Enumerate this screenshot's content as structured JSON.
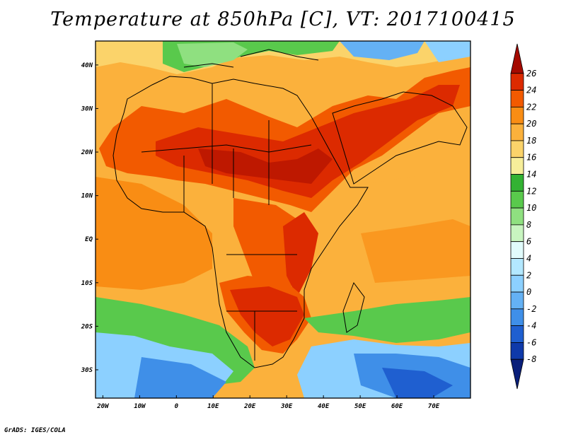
{
  "title": "Temperature at 850hPa [C], VT: 2017100415",
  "credit": "GrADS: IGES/COLA",
  "axes": {
    "lat_labels": [
      "40N",
      "30N",
      "20N",
      "10N",
      "EQ",
      "10S",
      "20S",
      "30S"
    ],
    "lat_values": [
      40,
      30,
      20,
      10,
      0,
      -10,
      -20,
      -30
    ],
    "lon_labels": [
      "20W",
      "10W",
      "0",
      "10E",
      "20E",
      "30E",
      "40E",
      "50E",
      "60E",
      "70E"
    ],
    "lon_values": [
      -20,
      -10,
      0,
      10,
      20,
      30,
      40,
      50,
      60,
      70
    ],
    "lat_range": [
      -36.5,
      45.5
    ],
    "lon_range": [
      -22,
      80
    ]
  },
  "colorbar": {
    "labels": [
      "26",
      "24",
      "22",
      "20",
      "18",
      "16",
      "14",
      "12",
      "10",
      "8",
      "6",
      "4",
      "2",
      "0",
      "-2",
      "-4",
      "-6",
      "-8"
    ],
    "colors": [
      "#a50a00",
      "#dc2a00",
      "#f25a00",
      "#f98d14",
      "#fbb13c",
      "#fbd36a",
      "#f7ee9a",
      "#33b233",
      "#59c94c",
      "#8fe080",
      "#c8f5c0",
      "#e1fbfb",
      "#b3e8ff",
      "#8cd0ff",
      "#64b1f4",
      "#3f8fe8",
      "#1f5fd0",
      "#0f3aaa",
      "#0a1f7a"
    ]
  }
}
